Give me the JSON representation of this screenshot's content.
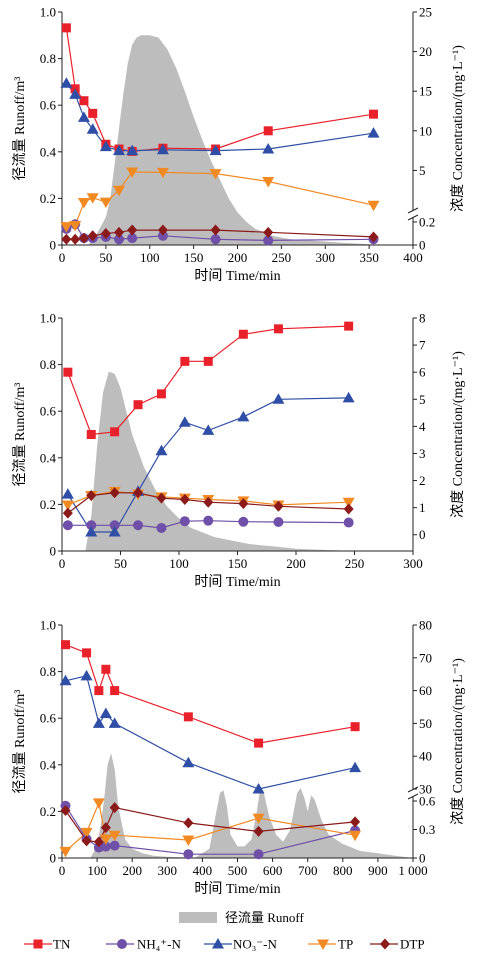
{
  "legend": {
    "runoff_label": "径流量 Runoff",
    "items": [
      {
        "key": "TN",
        "label": "TN"
      },
      {
        "key": "NH4",
        "label": "NH₄⁺-N"
      },
      {
        "key": "NO3",
        "label": "NO₃⁻-N"
      },
      {
        "key": "TP",
        "label": "TP"
      },
      {
        "key": "DTP",
        "label": "DTP"
      }
    ]
  },
  "colors": {
    "TN": "#e8212b",
    "NH4": "#6f4fa8",
    "NO3": "#2f4fa6",
    "TP": "#f28a24",
    "DTP": "#8b1a1a",
    "runoff": "#bdbdbd"
  },
  "chart_data": [
    {
      "type": "line",
      "xlabel": "时间 Time/min",
      "ylabel_left": "径流量 Runoff/m³",
      "ylabel_right": "浓度 Concentration/(mg·L⁻¹)",
      "xlim": [
        0,
        400
      ],
      "xticks": [
        "0",
        "50",
        "100",
        "150",
        "200",
        "250",
        "300",
        "350",
        "400"
      ],
      "left_ylim": [
        0,
        1.0
      ],
      "left_yticks": [
        "0",
        "0.2",
        "0.4",
        "0.6",
        "0.8",
        "1.0"
      ],
      "right_axis_break": true,
      "right_lower": {
        "range": [
          0,
          0.2
        ],
        "ticks": [
          "0",
          "0.2"
        ]
      },
      "right_upper": {
        "range": [
          0,
          25
        ],
        "ticks": [
          "5",
          "10",
          "15",
          "20",
          "25"
        ]
      },
      "runoff": {
        "x": [
          0,
          30,
          40,
          50,
          55,
          60,
          65,
          70,
          75,
          80,
          85,
          90,
          100,
          110,
          120,
          130,
          140,
          150,
          160,
          170,
          180,
          190,
          200,
          210,
          220,
          240,
          260,
          280,
          300,
          320,
          340,
          360
        ],
        "y": [
          0,
          0,
          0.05,
          0.12,
          0.2,
          0.35,
          0.5,
          0.65,
          0.78,
          0.86,
          0.89,
          0.9,
          0.9,
          0.89,
          0.84,
          0.76,
          0.66,
          0.55,
          0.45,
          0.36,
          0.28,
          0.2,
          0.14,
          0.1,
          0.07,
          0.04,
          0.025,
          0.02,
          0.015,
          0.01,
          0.005,
          0
        ]
      },
      "series": [
        {
          "name": "TN",
          "x": [
            5,
            15,
            25,
            35,
            50,
            65,
            80,
            115,
            175,
            235,
            355
          ],
          "y": [
            23.0,
            15.3,
            13.8,
            12.2,
            8.3,
            7.7,
            7.4,
            7.8,
            7.7,
            10.0,
            12.1
          ]
        },
        {
          "name": "NH₄⁺-N",
          "x": [
            5,
            15,
            25,
            35,
            50,
            65,
            80,
            115,
            175,
            235,
            355
          ],
          "y": [
            0.14,
            0.18,
            0.06,
            0.06,
            0.07,
            0.05,
            0.06,
            0.08,
            0.05,
            0.04,
            0.05
          ]
        },
        {
          "name": "NO₃⁻-N",
          "x": [
            5,
            15,
            25,
            35,
            50,
            65,
            80,
            115,
            175,
            235,
            355
          ],
          "y": [
            16.0,
            14.6,
            11.7,
            10.2,
            8.0,
            7.5,
            7.5,
            7.6,
            7.5,
            7.7,
            9.7
          ]
        },
        {
          "name": "TP",
          "x": [
            5,
            15,
            25,
            35,
            50,
            65,
            80,
            115,
            175,
            235,
            355
          ],
          "y": [
            0.16,
            0.17,
            0.95,
            1.55,
            1.0,
            2.5,
            4.8,
            4.75,
            4.6,
            3.6,
            0.6
          ]
        },
        {
          "name": "DTP",
          "x": [
            5,
            15,
            25,
            35,
            50,
            65,
            80,
            115,
            175,
            235,
            355
          ],
          "y": [
            0.05,
            0.05,
            0.06,
            0.08,
            0.1,
            0.11,
            0.13,
            0.13,
            0.13,
            0.11,
            0.07
          ]
        }
      ]
    },
    {
      "type": "line",
      "xlabel": "时间 Time/min",
      "ylabel_left": "径流量 Runoff/m³",
      "ylabel_right": "浓度 Concentration/(mg·L⁻¹)",
      "xlim": [
        0,
        300
      ],
      "xticks": [
        "0",
        "50",
        "100",
        "150",
        "200",
        "250",
        "300"
      ],
      "left_ylim": [
        0,
        1.0
      ],
      "left_yticks": [
        "0",
        "0.2",
        "0.4",
        "0.6",
        "0.8",
        "1.0"
      ],
      "right_ylim": [
        -0.6,
        8
      ],
      "right_yticks": [
        "0",
        "1",
        "2",
        "3",
        "4",
        "5",
        "6",
        "7",
        "8"
      ],
      "runoff": {
        "x": [
          0,
          20,
          25,
          30,
          35,
          40,
          45,
          50,
          55,
          60,
          70,
          80,
          90,
          100,
          110,
          120,
          130,
          140,
          150,
          160,
          170,
          180,
          190,
          200,
          220,
          240,
          260
        ],
        "y": [
          0,
          0,
          0.15,
          0.45,
          0.68,
          0.77,
          0.76,
          0.7,
          0.6,
          0.5,
          0.36,
          0.26,
          0.19,
          0.14,
          0.1,
          0.08,
          0.06,
          0.05,
          0.04,
          0.03,
          0.025,
          0.02,
          0.015,
          0.01,
          0.005,
          0.002,
          0
        ]
      },
      "series": [
        {
          "name": "TN",
          "x": [
            5,
            25,
            45,
            65,
            85,
            105,
            125,
            155,
            185,
            245
          ],
          "y": [
            6.0,
            3.7,
            3.8,
            4.8,
            5.2,
            6.4,
            6.4,
            7.4,
            7.6,
            7.7
          ]
        },
        {
          "name": "NH₄⁺-N",
          "x": [
            5,
            25,
            45,
            65,
            85,
            105,
            125,
            155,
            185,
            245
          ],
          "y": [
            0.35,
            0.35,
            0.35,
            0.35,
            0.25,
            0.5,
            0.52,
            0.48,
            0.47,
            0.45
          ]
        },
        {
          "name": "NO₃⁻-N",
          "x": [
            5,
            25,
            45,
            65,
            85,
            105,
            125,
            155,
            185,
            245
          ],
          "y": [
            1.5,
            0.1,
            0.1,
            1.6,
            3.1,
            4.15,
            3.85,
            4.35,
            5.0,
            5.05
          ]
        },
        {
          "name": "TP",
          "x": [
            5,
            25,
            45,
            65,
            85,
            105,
            125,
            155,
            185,
            245
          ],
          "y": [
            1.1,
            1.45,
            1.6,
            1.5,
            1.4,
            1.35,
            1.3,
            1.25,
            1.1,
            1.2
          ]
        },
        {
          "name": "DTP",
          "x": [
            5,
            25,
            45,
            65,
            85,
            105,
            125,
            155,
            185,
            245
          ],
          "y": [
            0.8,
            1.45,
            1.55,
            1.55,
            1.35,
            1.3,
            1.2,
            1.15,
            1.05,
            0.95
          ]
        }
      ]
    },
    {
      "type": "line",
      "xlabel": "时间 Time/min",
      "ylabel_left": "径流量 Runoff/m³",
      "ylabel_right": "浓度 Concentration/(mg·L⁻¹)",
      "xlim": [
        0,
        1000
      ],
      "xticks": [
        "0",
        "100",
        "200",
        "300",
        "400",
        "500",
        "600",
        "700",
        "800",
        "900",
        "1 000"
      ],
      "left_ylim": [
        0,
        1.0
      ],
      "left_yticks": [
        "0",
        "0.2",
        "0.4",
        "0.6",
        "0.8",
        "1.0"
      ],
      "right_axis_break": true,
      "right_lower": {
        "range": [
          0,
          0.6
        ],
        "ticks": [
          "0",
          "0.3",
          "0.6"
        ]
      },
      "right_upper": {
        "range": [
          30,
          80
        ],
        "ticks": [
          "30",
          "40",
          "50",
          "60",
          "70",
          "80"
        ]
      },
      "runoff": {
        "x": [
          0,
          80,
          100,
          110,
          120,
          130,
          140,
          150,
          160,
          180,
          200,
          230,
          260,
          300,
          340,
          380,
          420,
          440,
          450,
          460,
          470,
          480,
          500,
          520,
          540,
          555,
          565,
          575,
          590,
          610,
          630,
          650,
          660,
          670,
          680,
          690,
          700,
          710,
          720,
          740,
          760,
          780,
          800,
          850,
          900,
          950,
          1000
        ],
        "y": [
          0,
          0,
          0.05,
          0.14,
          0.25,
          0.4,
          0.45,
          0.38,
          0.22,
          0.08,
          0.04,
          0.02,
          0.01,
          0.005,
          0.003,
          0.002,
          0.04,
          0.2,
          0.28,
          0.29,
          0.22,
          0.1,
          0.05,
          0.05,
          0.08,
          0.2,
          0.3,
          0.28,
          0.18,
          0.1,
          0.07,
          0.12,
          0.2,
          0.28,
          0.3,
          0.26,
          0.2,
          0.27,
          0.25,
          0.16,
          0.1,
          0.08,
          0.06,
          0.03,
          0.02,
          0.01,
          0
        ]
      },
      "series": [
        {
          "name": "TN",
          "x": [
            10,
            70,
            105,
            125,
            150,
            360,
            560,
            835
          ],
          "y": [
            74.0,
            71.5,
            60.0,
            66.5,
            60.0,
            52.0,
            44.0,
            49.0
          ]
        },
        {
          "name": "NH₄⁺-N",
          "x": [
            10,
            70,
            105,
            125,
            150,
            360,
            560,
            835
          ],
          "y": [
            0.55,
            0.2,
            0.11,
            0.12,
            0.13,
            0.04,
            0.04,
            0.29
          ]
        },
        {
          "name": "NO₃⁻-N",
          "x": [
            10,
            70,
            105,
            125,
            150,
            360,
            560,
            835
          ],
          "y": [
            63.0,
            64.5,
            50.0,
            53.0,
            50.0,
            38.0,
            30.0,
            36.5
          ]
        },
        {
          "name": "TP",
          "x": [
            10,
            70,
            105,
            125,
            150,
            360,
            560,
            835
          ],
          "y": [
            0.07,
            0.27,
            0.58,
            0.2,
            0.24,
            0.19,
            0.42,
            0.24
          ]
        },
        {
          "name": "DTP",
          "x": [
            10,
            70,
            105,
            125,
            150,
            360,
            560,
            835
          ],
          "y": [
            0.5,
            0.18,
            0.17,
            0.32,
            0.53,
            0.37,
            0.28,
            0.38
          ]
        }
      ]
    }
  ]
}
